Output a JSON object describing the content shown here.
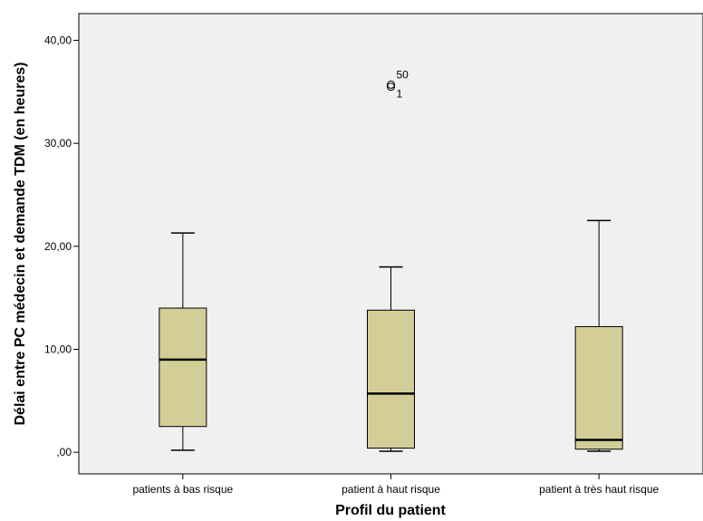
{
  "chart_data": {
    "type": "boxplot",
    "title": "",
    "xlabel": "Profil du patient",
    "ylabel": "Délai entre PC médecin et demande TDM (en heures)",
    "ylim": [
      -2.1,
      42.6
    ],
    "yticks": [
      0,
      10,
      20,
      30,
      40
    ],
    "ytick_labels": [
      ",00",
      "10,00",
      "20,00",
      "30,00",
      "40,00"
    ],
    "categories": [
      "patients à bas risque",
      "patient à haut risque",
      "patient à très haut risque"
    ],
    "boxes": [
      {
        "category": "patients à bas risque",
        "whisker_low": 0.2,
        "q1": 2.5,
        "median": 9.0,
        "q3": 14.0,
        "whisker_high": 21.3,
        "outliers": []
      },
      {
        "category": "patient à haut risque",
        "whisker_low": 0.1,
        "q1": 0.4,
        "median": 5.7,
        "q3": 13.8,
        "whisker_high": 18.0,
        "outliers": [
          {
            "value": 35.7,
            "label": "50"
          },
          {
            "value": 35.5,
            "label": "1"
          }
        ]
      },
      {
        "category": "patient à très haut risque",
        "whisker_low": 0.1,
        "q1": 0.3,
        "median": 1.2,
        "q3": 12.2,
        "whisker_high": 22.5,
        "outliers": []
      }
    ],
    "box_color": "#d3ce97",
    "plot_background": "#f0f0f0",
    "grid": false,
    "legend": "none"
  }
}
